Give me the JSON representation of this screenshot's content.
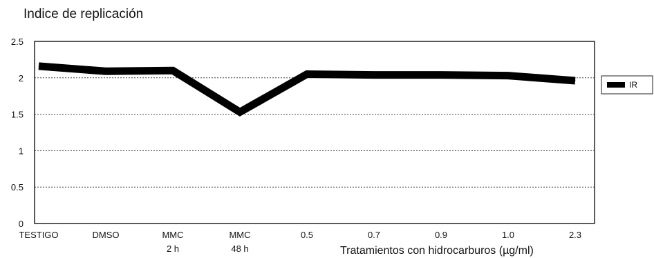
{
  "chart_data": {
    "type": "line",
    "title": "Indice de replicación",
    "xlabel": "Tratamientos con hidrocarburos (µg/ml)",
    "ylabel": "",
    "ylim": [
      0,
      2.5
    ],
    "yticks": [
      "0",
      "0.5",
      "1",
      "1.5",
      "2",
      "2.5"
    ],
    "grid": true,
    "legend": "right",
    "categories": [
      {
        "line1": "TESTIGO",
        "line2": ""
      },
      {
        "line1": "DMSO",
        "line2": ""
      },
      {
        "line1": "MMC",
        "line2": "2 h"
      },
      {
        "line1": "MMC",
        "line2": "48 h"
      },
      {
        "line1": "0.5",
        "line2": ""
      },
      {
        "line1": "0.7",
        "line2": ""
      },
      {
        "line1": "0.9",
        "line2": ""
      },
      {
        "line1": "1.0",
        "line2": ""
      },
      {
        "line1": "2.3",
        "line2": ""
      }
    ],
    "series": [
      {
        "name": "IR",
        "color": "#000000",
        "values": [
          2.16,
          2.09,
          2.1,
          1.53,
          2.05,
          2.04,
          2.04,
          2.03,
          1.96
        ]
      }
    ]
  }
}
